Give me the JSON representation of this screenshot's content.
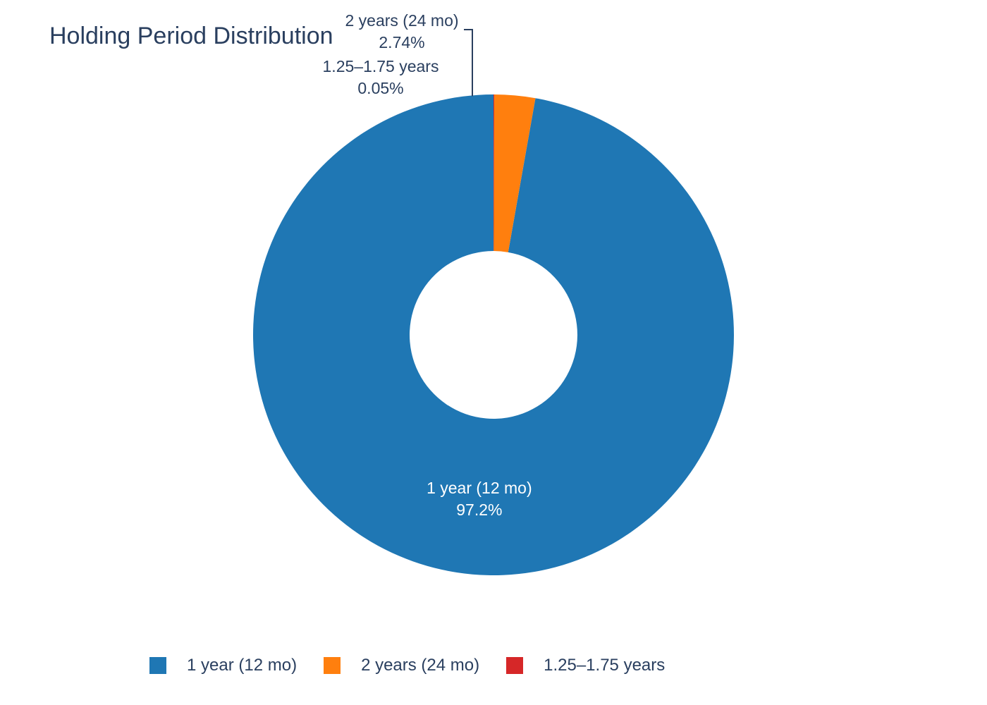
{
  "chart_data": {
    "type": "pie",
    "title": "Holding Period Distribution",
    "hole": true,
    "legend_position": "bottom",
    "slices": [
      {
        "label": "1 year (12 mo)",
        "value": 97.2,
        "percent_label": "97.2%",
        "color": "#1f77b4",
        "label_position": "inside"
      },
      {
        "label": "2 years (24 mo)",
        "value": 2.74,
        "percent_label": "2.74%",
        "color": "#ff7f0e",
        "label_position": "outside"
      },
      {
        "label": "1.25–1.75 years",
        "value": 0.05,
        "percent_label": "0.05%",
        "color": "#d62728",
        "label_position": "outside"
      }
    ]
  }
}
